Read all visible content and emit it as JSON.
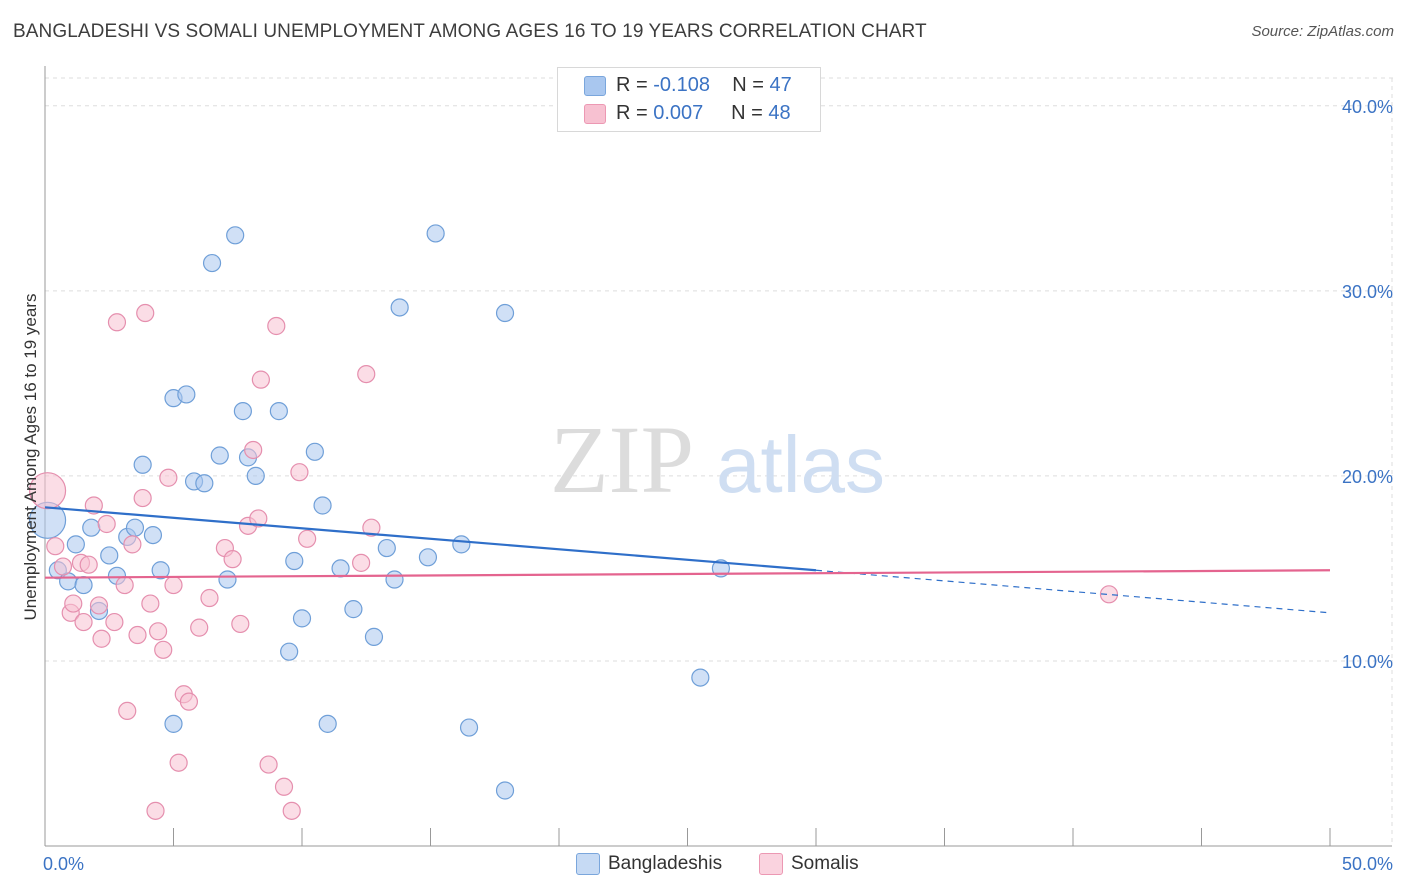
{
  "title": "BANGLADESHI VS SOMALI UNEMPLOYMENT AMONG AGES 16 TO 19 YEARS CORRELATION CHART",
  "source": "Source: ZipAtlas.com",
  "watermark": {
    "zip": "ZIP",
    "atlas": "atlas"
  },
  "legend": {
    "rows": [
      {
        "r_label": "R =",
        "r_value": "-0.108",
        "n_label": "N =",
        "n_value": "47",
        "color": "#a9c7ef",
        "border": "#7aa6dc"
      },
      {
        "r_label": "R =",
        "r_value": "0.007",
        "n_label": "N =",
        "n_value": "48",
        "color": "#f7c1d1",
        "border": "#ec98b3"
      }
    ]
  },
  "bottom_legend": [
    "Bangladeshis",
    "Somalis"
  ],
  "chart_data": {
    "type": "scatter",
    "ylabel": "Unemployment Among Ages 16 to 19 years",
    "x_tick_labels": [
      "0.0%",
      "50.0%"
    ],
    "y_tick_labels": [
      "10.0%",
      "20.0%",
      "30.0%",
      "40.0%"
    ],
    "y_ticks": [
      10,
      20,
      30,
      40
    ],
    "xlim": [
      0,
      50
    ],
    "ylim": [
      0,
      41.5
    ],
    "grid": true,
    "series": [
      {
        "name": "Bangladeshis",
        "color": "#a9c7ef",
        "stroke": "#6f9fd8",
        "trend_color": "#2f6fc9",
        "trend": {
          "x0": 0,
          "y0": 18.3,
          "x1": 30,
          "y1": 14.9,
          "dash_to_x": 50,
          "dash_to_y": 12.6
        },
        "points": [
          [
            0.1,
            17.6
          ],
          [
            0.5,
            14.9
          ],
          [
            0.9,
            14.3
          ],
          [
            1.2,
            16.3
          ],
          [
            1.5,
            14.1
          ],
          [
            1.8,
            17.2
          ],
          [
            2.1,
            12.7
          ],
          [
            2.5,
            15.7
          ],
          [
            2.8,
            14.6
          ],
          [
            3.2,
            16.7
          ],
          [
            3.5,
            17.2
          ],
          [
            3.8,
            20.6
          ],
          [
            4.2,
            16.8
          ],
          [
            4.5,
            14.9
          ],
          [
            5.0,
            24.2
          ],
          [
            5.5,
            24.4
          ],
          [
            5.8,
            19.7
          ],
          [
            6.2,
            19.6
          ],
          [
            6.5,
            31.5
          ],
          [
            6.8,
            21.1
          ],
          [
            7.1,
            14.4
          ],
          [
            7.4,
            33.0
          ],
          [
            7.7,
            23.5
          ],
          [
            7.9,
            21.0
          ],
          [
            8.2,
            20.0
          ],
          [
            9.1,
            23.5
          ],
          [
            9.5,
            10.5
          ],
          [
            9.7,
            15.4
          ],
          [
            10.0,
            12.3
          ],
          [
            10.5,
            21.3
          ],
          [
            10.8,
            18.4
          ],
          [
            11.0,
            6.6
          ],
          [
            11.5,
            15.0
          ],
          [
            12.0,
            12.8
          ],
          [
            12.8,
            11.3
          ],
          [
            13.3,
            16.1
          ],
          [
            13.6,
            14.4
          ],
          [
            13.8,
            29.1
          ],
          [
            14.9,
            15.6
          ],
          [
            15.2,
            33.1
          ],
          [
            16.2,
            16.3
          ],
          [
            16.5,
            6.4
          ],
          [
            17.9,
            3.0
          ],
          [
            17.9,
            28.8
          ],
          [
            25.5,
            9.1
          ],
          [
            26.3,
            15.0
          ],
          [
            5.0,
            6.6
          ]
        ]
      },
      {
        "name": "Somalis",
        "color": "#f7c1d1",
        "stroke": "#e58fae",
        "trend_color": "#e4648f",
        "trend": {
          "x0": 0,
          "y0": 14.5,
          "x1": 50,
          "y1": 14.9
        },
        "points": [
          [
            0.1,
            19.2
          ],
          [
            0.4,
            16.2
          ],
          [
            0.7,
            15.1
          ],
          [
            1.0,
            12.6
          ],
          [
            1.1,
            13.1
          ],
          [
            1.4,
            15.3
          ],
          [
            1.5,
            12.1
          ],
          [
            1.7,
            15.2
          ],
          [
            1.9,
            18.4
          ],
          [
            2.1,
            13.0
          ],
          [
            2.2,
            11.2
          ],
          [
            2.4,
            17.4
          ],
          [
            2.7,
            12.1
          ],
          [
            3.1,
            14.1
          ],
          [
            3.2,
            7.3
          ],
          [
            3.4,
            16.3
          ],
          [
            3.6,
            11.4
          ],
          [
            3.8,
            18.8
          ],
          [
            3.9,
            28.8
          ],
          [
            4.1,
            13.1
          ],
          [
            4.4,
            11.6
          ],
          [
            4.6,
            10.6
          ],
          [
            4.8,
            19.9
          ],
          [
            5.0,
            14.1
          ],
          [
            5.2,
            4.5
          ],
          [
            5.4,
            8.2
          ],
          [
            5.6,
            7.8
          ],
          [
            6.0,
            11.8
          ],
          [
            6.4,
            13.4
          ],
          [
            7.0,
            16.1
          ],
          [
            7.3,
            15.5
          ],
          [
            7.6,
            12.0
          ],
          [
            7.9,
            17.3
          ],
          [
            8.1,
            21.4
          ],
          [
            8.3,
            17.7
          ],
          [
            8.4,
            25.2
          ],
          [
            8.7,
            4.4
          ],
          [
            9.0,
            28.1
          ],
          [
            9.3,
            3.2
          ],
          [
            9.6,
            1.9
          ],
          [
            9.9,
            20.2
          ],
          [
            10.2,
            16.6
          ],
          [
            12.3,
            15.3
          ],
          [
            12.5,
            25.5
          ],
          [
            12.7,
            17.2
          ],
          [
            4.3,
            1.9
          ],
          [
            41.4,
            13.6
          ],
          [
            2.8,
            28.3
          ]
        ]
      }
    ]
  }
}
